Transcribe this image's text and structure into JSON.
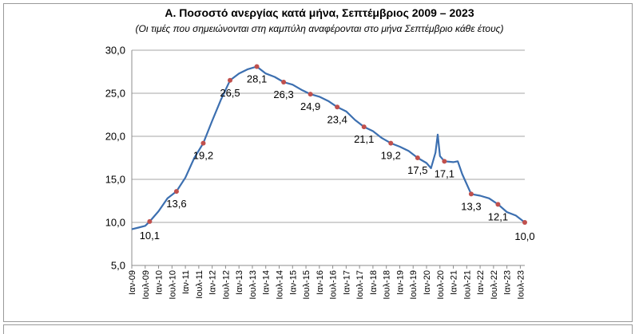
{
  "chart_data": {
    "type": "line",
    "title": "Α. Ποσοστό ανεργίας κατά μήνα, Σεπτέμβριος 2009 – 2023",
    "subtitle": "(Οι τιμές που σημειώνονται στη καμπύλη αναφέρονται στο μήνα Σεπτέμβριο κάθε έτους)",
    "xlabel": "",
    "ylabel": "",
    "ylim": [
      5,
      30
    ],
    "yticks": [
      "5,0",
      "10,0",
      "15,0",
      "20,0",
      "25,0",
      "30,0"
    ],
    "grid": true,
    "legend": "none",
    "line_color": "#3c6fb0",
    "marker_color": "#c0504d",
    "x_tick_labels": [
      "Ιαν-09",
      "Ιουλ-09",
      "Ιαν-10",
      "Ιουλ-10",
      "Ιαν-11",
      "Ιουλ-11",
      "Ιαν-12",
      "Ιουλ-12",
      "Ιαν-13",
      "Ιουλ-13",
      "Ιαν-14",
      "Ιουλ-14",
      "Ιαν-15",
      "Ιουλ-15",
      "Ιαν-16",
      "Ιουλ-16",
      "Ιαν-17",
      "Ιουλ-17",
      "Ιαν-18",
      "Ιουλ-18",
      "Ιαν-19",
      "Ιουλ-19",
      "Ιαν-20",
      "Ιουλ-20",
      "Ιαν-21",
      "Ιουλ-21",
      "Ιαν-22",
      "Ιουλ-22",
      "Ιαν-23",
      "Ιουλ-23"
    ],
    "series": [
      {
        "x": [
          "2009-01",
          "2009-04",
          "2009-07",
          "2009-09",
          "2010-01",
          "2010-05",
          "2010-09",
          "2011-01",
          "2011-05",
          "2011-09",
          "2012-01",
          "2012-05",
          "2012-09",
          "2013-01",
          "2013-05",
          "2013-09",
          "2014-01",
          "2014-05",
          "2014-09",
          "2015-01",
          "2015-05",
          "2015-09",
          "2016-01",
          "2016-05",
          "2016-09",
          "2017-01",
          "2017-05",
          "2017-09",
          "2018-01",
          "2018-05",
          "2018-09",
          "2019-01",
          "2019-05",
          "2019-09",
          "2020-01",
          "2020-03",
          "2020-05",
          "2020-06",
          "2020-07",
          "2020-09",
          "2021-01",
          "2021-03",
          "2021-05",
          "2021-09",
          "2022-01",
          "2022-05",
          "2022-09",
          "2023-01",
          "2023-05",
          "2023-09"
        ],
        "values": [
          9.2,
          9.4,
          9.6,
          10.1,
          11.3,
          12.8,
          13.6,
          15.2,
          17.5,
          19.2,
          21.8,
          24.3,
          26.5,
          27.3,
          27.8,
          28.1,
          27.3,
          26.9,
          26.3,
          26.0,
          25.4,
          24.9,
          24.6,
          24.1,
          23.4,
          22.9,
          21.9,
          21.1,
          20.6,
          19.8,
          19.2,
          18.8,
          18.3,
          17.5,
          16.9,
          16.3,
          18.1,
          20.2,
          17.7,
          17.1,
          17.0,
          17.1,
          15.6,
          13.3,
          13.1,
          12.8,
          12.1,
          11.2,
          10.8,
          10.0
        ]
      }
    ],
    "september_points": [
      {
        "x": "2009-09",
        "value": 10.1,
        "label": "10,1"
      },
      {
        "x": "2010-09",
        "value": 13.6,
        "label": "13,6"
      },
      {
        "x": "2011-09",
        "value": 19.2,
        "label": "19,2"
      },
      {
        "x": "2012-09",
        "value": 26.5,
        "label": "26,5"
      },
      {
        "x": "2013-09",
        "value": 28.1,
        "label": "28,1"
      },
      {
        "x": "2014-09",
        "value": 26.3,
        "label": "26,3"
      },
      {
        "x": "2015-09",
        "value": 24.9,
        "label": "24,9"
      },
      {
        "x": "2016-09",
        "value": 23.4,
        "label": "23,4"
      },
      {
        "x": "2017-09",
        "value": 21.1,
        "label": "21,1"
      },
      {
        "x": "2018-09",
        "value": 19.2,
        "label": "19,2"
      },
      {
        "x": "2019-09",
        "value": 17.5,
        "label": "17,5"
      },
      {
        "x": "2020-09",
        "value": 17.1,
        "label": "17,1"
      },
      {
        "x": "2021-09",
        "value": 13.3,
        "label": "13,3"
      },
      {
        "x": "2022-09",
        "value": 12.1,
        "label": "12,1"
      },
      {
        "x": "2023-09",
        "value": 10.0,
        "label": "10,0"
      }
    ]
  }
}
